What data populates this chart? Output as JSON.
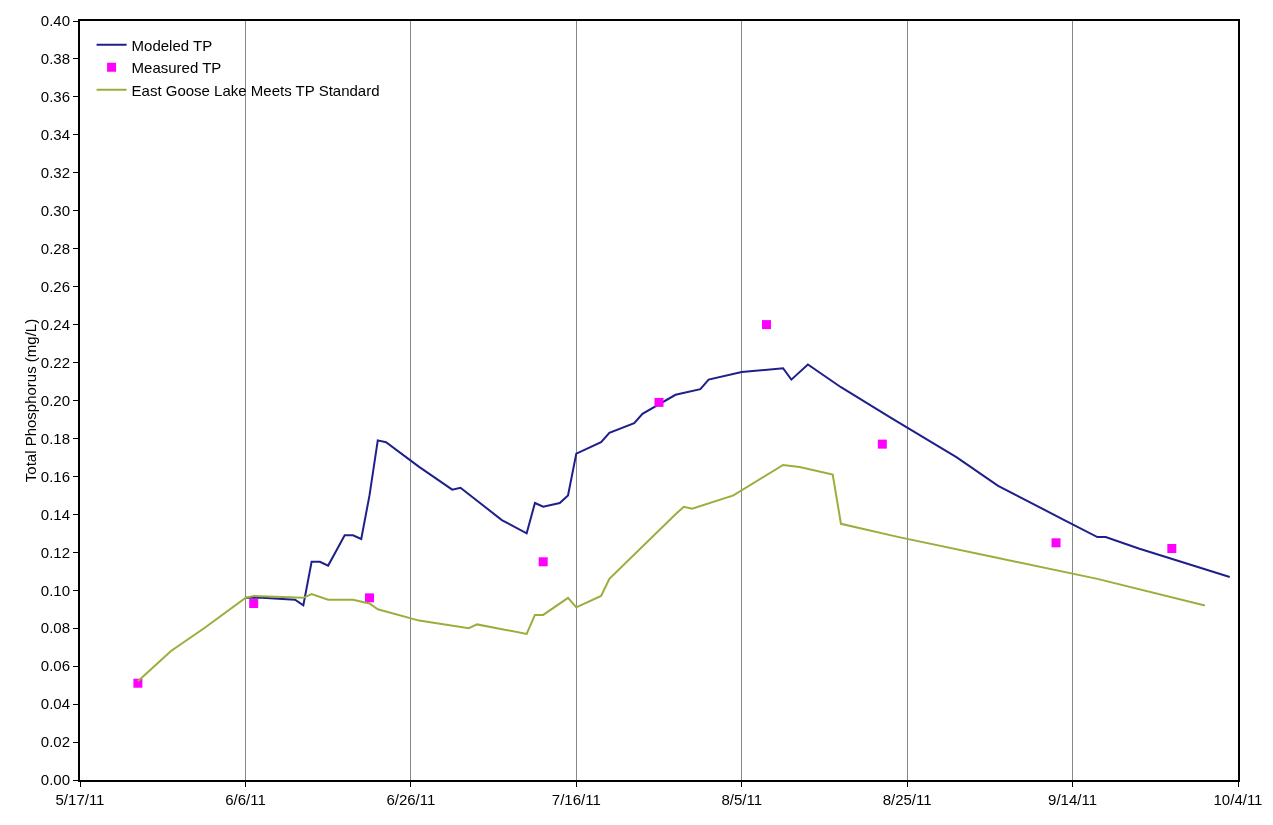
{
  "chart_data": {
    "type": "line",
    "ylabel": "Total Phosphorus (mg/L)",
    "grid": "x",
    "legend": "top left",
    "xlim": [
      "2011-05-17",
      "2011-10-04"
    ],
    "xticks": [
      {
        "value": "2011-05-17",
        "label": "5/17/11"
      },
      {
        "value": "2011-06-06",
        "label": "6/6/11"
      },
      {
        "value": "2011-06-26",
        "label": "6/26/11"
      },
      {
        "value": "2011-07-16",
        "label": "7/16/11"
      },
      {
        "value": "2011-08-05",
        "label": "8/5/11"
      },
      {
        "value": "2011-08-25",
        "label": "8/25/11"
      },
      {
        "value": "2011-09-14",
        "label": "9/14/11"
      },
      {
        "value": "2011-10-04",
        "label": "10/4/11"
      }
    ],
    "ylim": [
      0,
      0.4
    ],
    "yticks": [
      {
        "value": 0,
        "label": "0.00"
      },
      {
        "value": 0.02,
        "label": "0.02"
      },
      {
        "value": 0.04,
        "label": "0.04"
      },
      {
        "value": 0.06,
        "label": "0.06"
      },
      {
        "value": 0.08,
        "label": "0.08"
      },
      {
        "value": 0.1,
        "label": "0.10"
      },
      {
        "value": 0.12,
        "label": "0.12"
      },
      {
        "value": 0.14,
        "label": "0.14"
      },
      {
        "value": 0.16,
        "label": "0.16"
      },
      {
        "value": 0.18,
        "label": "0.18"
      },
      {
        "value": 0.2,
        "label": "0.20"
      },
      {
        "value": 0.22,
        "label": "0.22"
      },
      {
        "value": 0.24,
        "label": "0.24"
      },
      {
        "value": 0.26,
        "label": "0.26"
      },
      {
        "value": 0.28,
        "label": "0.28"
      },
      {
        "value": 0.3,
        "label": "0.30"
      },
      {
        "value": 0.32,
        "label": "0.32"
      },
      {
        "value": 0.34,
        "label": "0.34"
      },
      {
        "value": 0.36,
        "label": "0.36"
      },
      {
        "value": 0.38,
        "label": "0.38"
      },
      {
        "value": 0.4,
        "label": "0.40"
      }
    ],
    "series": [
      {
        "name": "Modeled TP",
        "color": "#1f1f8c",
        "marker": "none",
        "line_style": "solid",
        "x": [
          "2011-06-06",
          "2011-06-08",
          "2011-06-12",
          "2011-06-13",
          "2011-06-14",
          "2011-06-15",
          "2011-06-16",
          "2011-06-17",
          "2011-06-18",
          "2011-06-19",
          "2011-06-20",
          "2011-06-21",
          "2011-06-22",
          "2011-06-23",
          "2011-06-27",
          "2011-07-01",
          "2011-07-02",
          "2011-07-07",
          "2011-07-10",
          "2011-07-11",
          "2011-07-12",
          "2011-07-14",
          "2011-07-15",
          "2011-07-16",
          "2011-07-19",
          "2011-07-20",
          "2011-07-23",
          "2011-07-24",
          "2011-07-28",
          "2011-07-31",
          "2011-08-01",
          "2011-08-05",
          "2011-08-10",
          "2011-08-11",
          "2011-08-13",
          "2011-08-17",
          "2011-08-23",
          "2011-08-31",
          "2011-09-05",
          "2011-09-13",
          "2011-09-17",
          "2011-09-18",
          "2011-09-22",
          "2011-10-03"
        ],
        "values": [
          0.096,
          0.096,
          0.095,
          0.092,
          0.115,
          0.115,
          0.113,
          0.121,
          0.129,
          0.129,
          0.127,
          0.15,
          0.179,
          0.178,
          0.165,
          0.153,
          0.154,
          0.137,
          0.13,
          0.146,
          0.144,
          0.146,
          0.15,
          0.172,
          0.178,
          0.183,
          0.188,
          0.193,
          0.203,
          0.206,
          0.211,
          0.215,
          0.217,
          0.211,
          0.219,
          0.207,
          0.191,
          0.17,
          0.155,
          0.137,
          0.128,
          0.128,
          0.122,
          0.107
        ]
      },
      {
        "name": "Measured TP",
        "type": "scatter",
        "color": "#ff00ff",
        "marker": "square",
        "x": [
          "2011-05-24",
          "2011-06-07",
          "2011-06-21",
          "2011-07-12",
          "2011-07-26",
          "2011-08-08",
          "2011-08-22",
          "2011-09-12",
          "2011-09-26"
        ],
        "values": [
          0.051,
          0.093,
          0.096,
          0.115,
          0.199,
          0.24,
          0.177,
          0.125,
          0.122
        ]
      },
      {
        "name": "East Goose Lake Meets TP Standard",
        "color": "#9aae3c",
        "marker": "none",
        "line_style": "solid",
        "x": [
          "2011-05-24",
          "2011-05-28",
          "2011-06-01",
          "2011-06-06",
          "2011-06-07",
          "2011-06-13",
          "2011-06-14",
          "2011-06-16",
          "2011-06-19",
          "2011-06-21",
          "2011-06-22",
          "2011-06-27",
          "2011-07-03",
          "2011-07-04",
          "2011-07-10",
          "2011-07-11",
          "2011-07-12",
          "2011-07-15",
          "2011-07-16",
          "2011-07-19",
          "2011-07-20",
          "2011-07-28",
          "2011-07-29",
          "2011-07-30",
          "2011-08-04",
          "2011-08-10",
          "2011-08-12",
          "2011-08-16",
          "2011-08-17",
          "2011-08-24",
          "2011-09-05",
          "2011-09-17",
          "2011-09-30"
        ],
        "values": [
          0.052,
          0.068,
          0.08,
          0.096,
          0.097,
          0.096,
          0.098,
          0.095,
          0.095,
          0.093,
          0.09,
          0.084,
          0.08,
          0.082,
          0.077,
          0.087,
          0.087,
          0.096,
          0.091,
          0.097,
          0.106,
          0.14,
          0.144,
          0.143,
          0.15,
          0.166,
          0.165,
          0.161,
          0.135,
          0.128,
          0.117,
          0.106,
          0.092
        ]
      }
    ]
  }
}
